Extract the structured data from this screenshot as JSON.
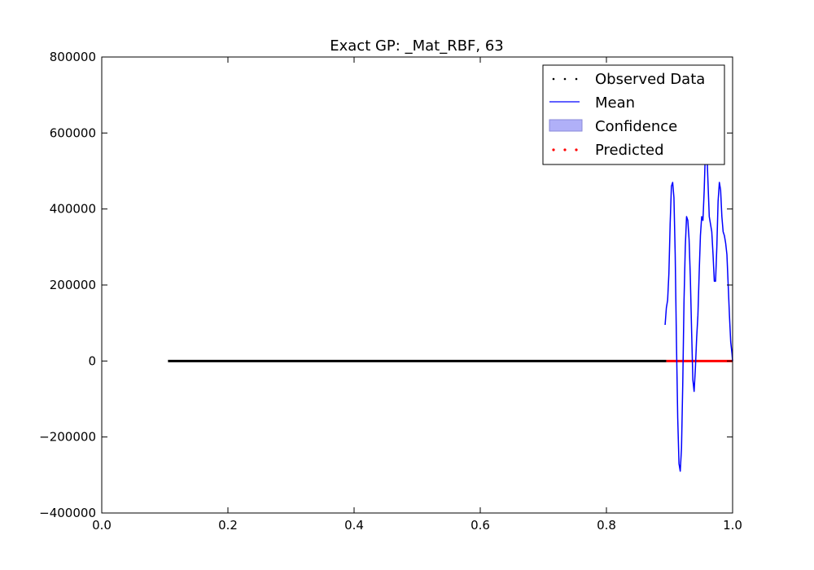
{
  "chart_data": {
    "type": "line",
    "title": "Exact GP: _Mat_RBF, 63",
    "xlabel": "",
    "ylabel": "",
    "xlim": [
      0.0,
      1.0
    ],
    "ylim": [
      -400000,
      800000
    ],
    "x_ticks": [
      0.0,
      0.2,
      0.4,
      0.6,
      0.8,
      1.0
    ],
    "x_tick_labels": [
      "0.0",
      "0.2",
      "0.4",
      "0.6",
      "0.8",
      "1.0"
    ],
    "y_ticks": [
      -400000,
      -200000,
      0,
      200000,
      400000,
      600000,
      800000
    ],
    "y_tick_labels": [
      "−400000",
      "−200000",
      "0",
      "200000",
      "400000",
      "600000",
      "800000"
    ],
    "legend": {
      "position": "top-right",
      "entries": [
        {
          "label": "Observed Data",
          "style": "black-dots"
        },
        {
          "label": "Mean",
          "style": "blue-line"
        },
        {
          "label": "Confidence",
          "style": "blue-fill"
        },
        {
          "label": "Predicted",
          "style": "red-dots"
        }
      ]
    },
    "series": [
      {
        "name": "Observed Data",
        "kind": "dots",
        "color": "#000000",
        "x_range": [
          0.105,
          0.895
        ],
        "y_value": 0
      },
      {
        "name": "Predicted",
        "kind": "dots",
        "color": "#ff0000",
        "x_range": [
          0.895,
          1.0
        ],
        "y_value": 0
      },
      {
        "name": "Mean",
        "kind": "line",
        "color": "#0000ff",
        "x": [
          0.893,
          0.895,
          0.897,
          0.899,
          0.901,
          0.903,
          0.905,
          0.907,
          0.909,
          0.911,
          0.913,
          0.915,
          0.917,
          0.919,
          0.921,
          0.923,
          0.925,
          0.927,
          0.929,
          0.931,
          0.933,
          0.935,
          0.937,
          0.939,
          0.941,
          0.943,
          0.945,
          0.947,
          0.949,
          0.951,
          0.953,
          0.955,
          0.957,
          0.959,
          0.961,
          0.963,
          0.965,
          0.967,
          0.969,
          0.971,
          0.973,
          0.975,
          0.977,
          0.979,
          0.981,
          0.983,
          0.985,
          0.987,
          0.989,
          0.991,
          0.993,
          0.995,
          0.997,
          0.999,
          1.0
        ],
        "y": [
          95000,
          140000,
          160000,
          230000,
          360000,
          460000,
          470000,
          430000,
          280000,
          50000,
          -150000,
          -270000,
          -290000,
          -230000,
          -60000,
          160000,
          300000,
          380000,
          370000,
          320000,
          220000,
          80000,
          -50000,
          -80000,
          -20000,
          60000,
          120000,
          230000,
          330000,
          380000,
          370000,
          450000,
          560000,
          560000,
          470000,
          380000,
          360000,
          340000,
          280000,
          210000,
          210000,
          300000,
          420000,
          470000,
          450000,
          380000,
          340000,
          330000,
          310000,
          280000,
          200000,
          120000,
          50000,
          20000,
          0
        ]
      }
    ],
    "colors": {
      "mean": "#0000ff",
      "observed": "#000000",
      "predicted": "#ff0000",
      "confidence": "#b0b0f8"
    }
  }
}
